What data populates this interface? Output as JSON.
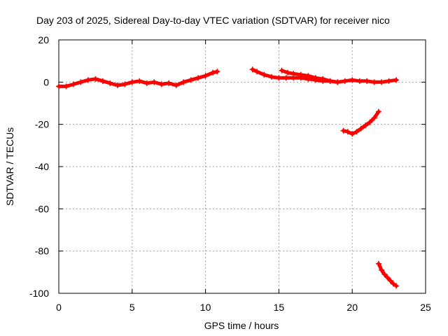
{
  "chart_data": {
    "type": "scatter",
    "title": "Day 203 of 2025, Sidereal Day-to-day VTEC variation (SDTVAR) for receiver nico",
    "xlabel": "GPS time / hours",
    "ylabel": "SDTVAR / TECUs",
    "xlim": [
      0,
      25
    ],
    "ylim": [
      -100,
      20
    ],
    "xticks": [
      0,
      5,
      10,
      15,
      20,
      25
    ],
    "yticks": [
      -100,
      -80,
      -60,
      -40,
      -20,
      0,
      20
    ],
    "xtick_labels": [
      "0",
      "5",
      "10",
      "15",
      "20",
      "25"
    ],
    "ytick_labels": [
      "-100",
      "-80",
      "-60",
      "-40",
      "-20",
      "0",
      "20"
    ],
    "grid": true,
    "marker_color": "#ff0000",
    "series": [
      {
        "x": [
          0.0,
          0.5,
          1.0,
          1.5,
          2.0,
          2.5,
          3.0,
          3.5,
          4.0,
          4.5,
          5.0,
          5.5,
          6.0,
          6.5,
          7.0,
          7.5,
          8.0,
          8.5,
          9.0,
          9.5,
          10.0,
          10.5,
          10.8
        ],
        "y": [
          -2,
          -2,
          -1,
          0,
          1,
          1.5,
          0.5,
          -0.5,
          -1.5,
          -1,
          0,
          0.5,
          -0.5,
          0,
          -1,
          -0.5,
          -1.5,
          0,
          1,
          2,
          3,
          4.5,
          5
        ]
      },
      {
        "x": [
          13.2,
          13.5,
          14.0,
          14.5,
          15.0,
          15.5,
          16.0,
          16.5,
          17.0,
          17.5,
          18.0,
          18.5,
          19.0,
          19.5,
          20.0,
          20.5,
          21.0,
          21.5,
          22.0,
          22.5,
          23.0
        ],
        "y": [
          6,
          5,
          3.5,
          2.5,
          2,
          2,
          2,
          2,
          1.5,
          1,
          0.5,
          0.5,
          0,
          0.5,
          1,
          0.5,
          0.5,
          0,
          0,
          0.5,
          1
        ]
      },
      {
        "x": [
          15.2,
          15.6,
          16.0,
          16.5,
          17.0,
          17.5,
          18.0,
          18.5,
          19.0
        ],
        "y": [
          5.5,
          4.5,
          4,
          3.5,
          3,
          2,
          1.5,
          0.5,
          0
        ]
      },
      {
        "x": [
          19.4,
          19.7,
          20.0,
          20.3,
          20.6,
          20.9,
          21.2,
          21.5,
          21.8
        ],
        "y": [
          -23,
          -23.5,
          -24.5,
          -23.5,
          -22,
          -20.5,
          -19,
          -17,
          -14
        ]
      },
      {
        "x": [
          21.8,
          22.0,
          22.2,
          22.4,
          22.6,
          22.8,
          23.0
        ],
        "y": [
          -86,
          -89,
          -91,
          -92.5,
          -94,
          -95.5,
          -96.5
        ]
      }
    ]
  }
}
